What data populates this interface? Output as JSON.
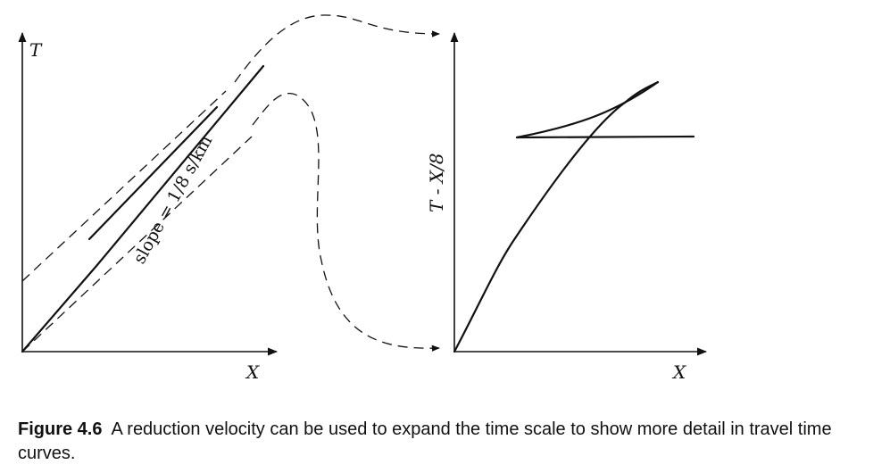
{
  "left_plot": {
    "y_axis_label": "T",
    "x_axis_label": "X",
    "slope_annotation": "slope = 1/8 s/km"
  },
  "right_plot": {
    "y_axis_label": "T - X/8",
    "x_axis_label": "X"
  },
  "caption": {
    "figure_number": "Figure 4.6",
    "text": "A reduction velocity can be used to expand the time scale to show more detail in travel time curves."
  }
}
